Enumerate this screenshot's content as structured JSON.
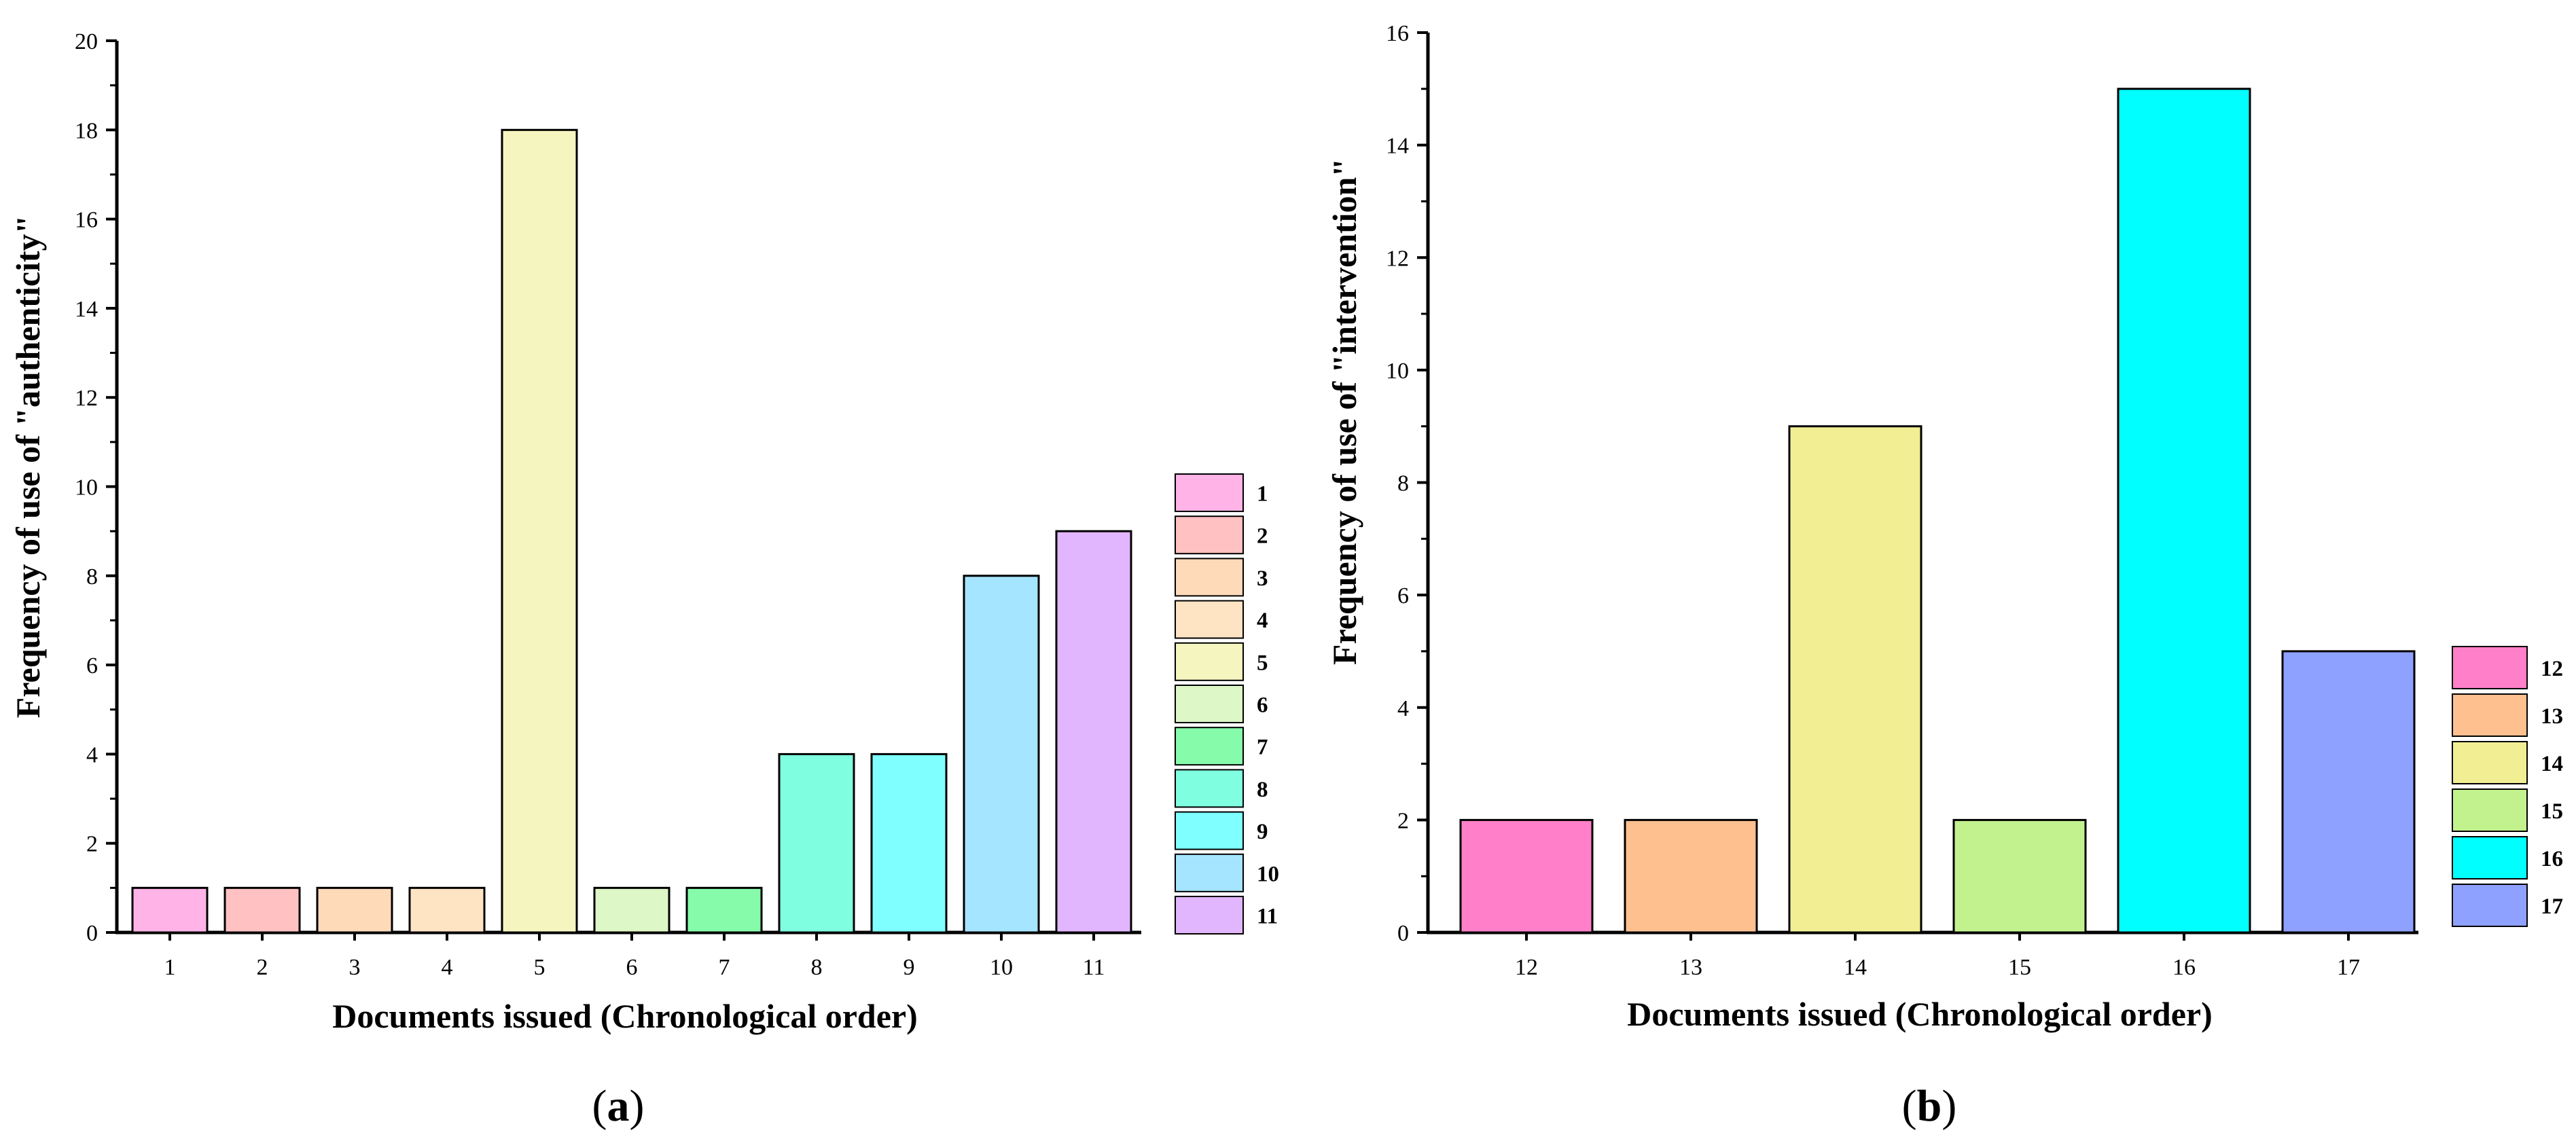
{
  "chart_data": [
    {
      "type": "bar",
      "panel_label": "a",
      "categories": [
        "1",
        "2",
        "3",
        "4",
        "5",
        "6",
        "7",
        "8",
        "9",
        "10",
        "11"
      ],
      "values": [
        1,
        1,
        1,
        1,
        18,
        1,
        1,
        4,
        4,
        8,
        9
      ],
      "colors": [
        "#FFB3E6",
        "#FFC1C1",
        "#FFDAB9",
        "#FFE4C4",
        "#F5F5C0",
        "#DDF7C6",
        "#86FBAA",
        "#7FFFE0",
        "#7FFFFF",
        "#A6E5FF",
        "#E2B5FF"
      ],
      "title": "",
      "xlabel": "Documents issued (Chronological order)",
      "ylabel": "Frequency of use of \"authenticity\"",
      "ylim": [
        0,
        20
      ],
      "yticks": [
        "0",
        "2",
        "4",
        "6",
        "8",
        "10",
        "12",
        "14",
        "16",
        "18",
        "20"
      ],
      "legend": [
        "1",
        "2",
        "3",
        "4",
        "5",
        "6",
        "7",
        "8",
        "9",
        "10",
        "11"
      ],
      "legend_position": "right",
      "grid": false
    },
    {
      "type": "bar",
      "panel_label": "b",
      "categories": [
        "12",
        "13",
        "14",
        "15",
        "16",
        "17"
      ],
      "values": [
        2,
        2,
        9,
        2,
        15,
        5
      ],
      "colors": [
        "#FF80C8",
        "#FFC090",
        "#F2EE94",
        "#C2F28E",
        "#00FFFF",
        "#8FA1FF"
      ],
      "title": "",
      "xlabel": "Documents issued (Chronological order)",
      "ylabel": "Frequency of use of \"intervention\"",
      "ylim": [
        0,
        16
      ],
      "yticks": [
        "0",
        "2",
        "4",
        "6",
        "8",
        "10",
        "12",
        "14",
        "16"
      ],
      "legend": [
        "12",
        "13",
        "14",
        "15",
        "16",
        "17"
      ],
      "legend_position": "right",
      "grid": false
    }
  ]
}
